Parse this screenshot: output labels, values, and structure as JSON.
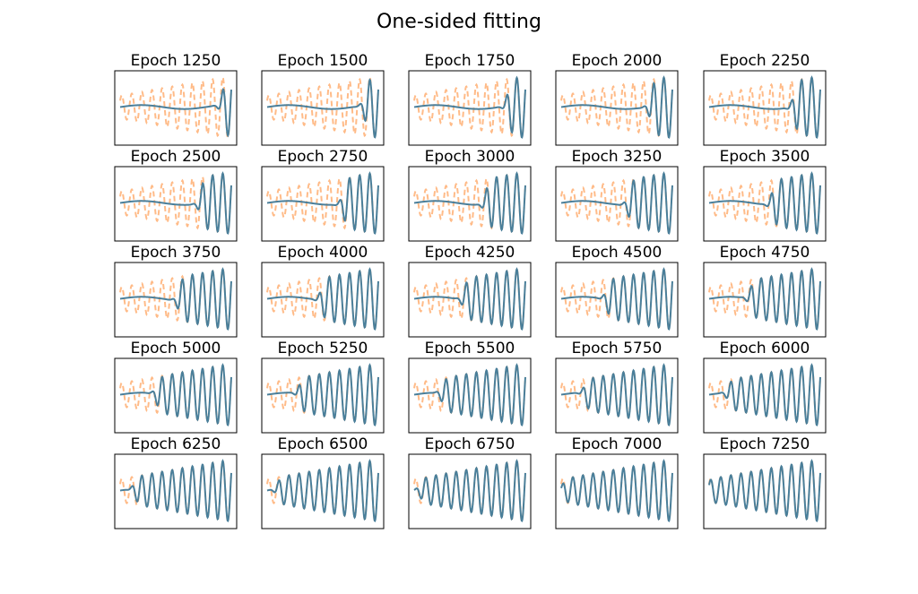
{
  "figure": {
    "title": "One-sided fitting"
  },
  "colors": {
    "target": "#ffbb88",
    "fit": "#4a7f9a",
    "frame": "#000000",
    "background": "#ffffff"
  },
  "chart_data": {
    "type": "line",
    "grid": false,
    "axes_ticks": false,
    "layout": "5x5",
    "series_styles": [
      {
        "role": "target",
        "style": "dashed",
        "color": "#ffbb88"
      },
      {
        "role": "fit",
        "style": "solid",
        "color": "#4a7f9a"
      }
    ],
    "panels": [
      {
        "title": "Epoch 1250",
        "epoch": 1250
      },
      {
        "title": "Epoch 1500",
        "epoch": 1500
      },
      {
        "title": "Epoch 1750",
        "epoch": 1750
      },
      {
        "title": "Epoch 2000",
        "epoch": 2000
      },
      {
        "title": "Epoch 2250",
        "epoch": 2250
      },
      {
        "title": "Epoch 2500",
        "epoch": 2500
      },
      {
        "title": "Epoch 2750",
        "epoch": 2750
      },
      {
        "title": "Epoch 3000",
        "epoch": 3000
      },
      {
        "title": "Epoch 3250",
        "epoch": 3250
      },
      {
        "title": "Epoch 3500",
        "epoch": 3500
      },
      {
        "title": "Epoch 3750",
        "epoch": 3750
      },
      {
        "title": "Epoch 4000",
        "epoch": 4000
      },
      {
        "title": "Epoch 4250",
        "epoch": 4250
      },
      {
        "title": "Epoch 4500",
        "epoch": 4500
      },
      {
        "title": "Epoch 4750",
        "epoch": 4750
      },
      {
        "title": "Epoch 5000",
        "epoch": 5000
      },
      {
        "title": "Epoch 5250",
        "epoch": 5250
      },
      {
        "title": "Epoch 5500",
        "epoch": 5500
      },
      {
        "title": "Epoch 5750",
        "epoch": 5750
      },
      {
        "title": "Epoch 6000",
        "epoch": 6000
      },
      {
        "title": "Epoch 6250",
        "epoch": 6250
      },
      {
        "title": "Epoch 6500",
        "epoch": 6500
      },
      {
        "title": "Epoch 6750",
        "epoch": 6750
      },
      {
        "title": "Epoch 7000",
        "epoch": 7000
      },
      {
        "title": "Epoch 7250",
        "epoch": 7250
      }
    ]
  }
}
